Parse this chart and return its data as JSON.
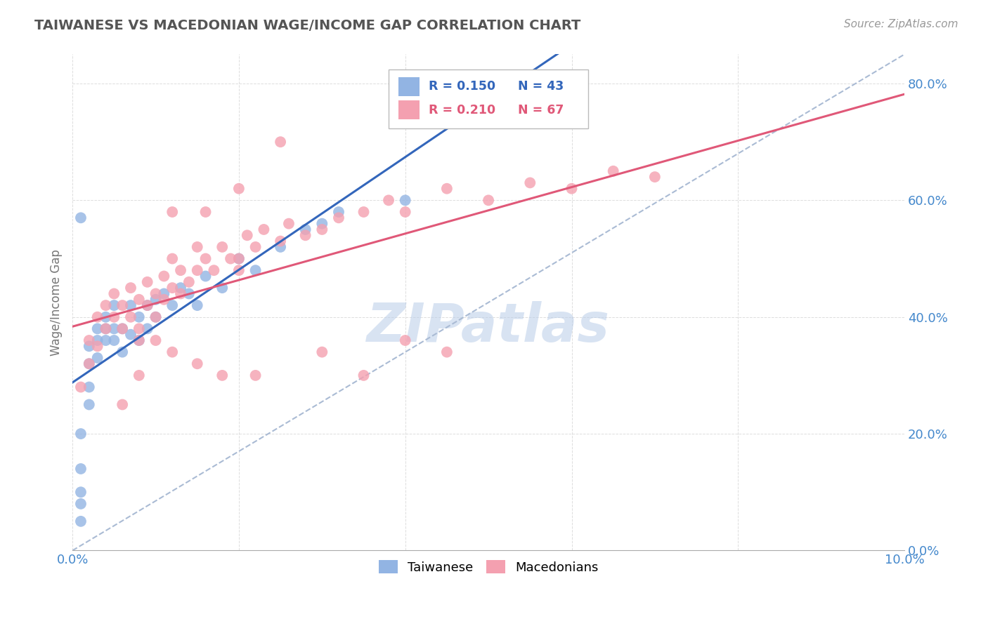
{
  "title": "TAIWANESE VS MACEDONIAN WAGE/INCOME GAP CORRELATION CHART",
  "source": "Source: ZipAtlas.com",
  "ylabel": "Wage/Income Gap",
  "xlim": [
    0.0,
    0.1
  ],
  "ylim": [
    0.0,
    0.85
  ],
  "xtick_vals": [
    0.0,
    0.02,
    0.04,
    0.06,
    0.08,
    0.1
  ],
  "xtick_labels": [
    "0.0%",
    "",
    "",
    "",
    "",
    "10.0%"
  ],
  "ytick_vals": [
    0.0,
    0.2,
    0.4,
    0.6,
    0.8
  ],
  "ytick_labels": [
    "0.0%",
    "20.0%",
    "40.0%",
    "60.0%",
    "80.0%"
  ],
  "legend_r1": "R = 0.150",
  "legend_n1": "N = 43",
  "legend_r2": "R = 0.210",
  "legend_n2": "N = 67",
  "watermark": "ZIPatlas",
  "blue_color": "#92B4E3",
  "pink_color": "#F4A0B0",
  "blue_line_color": "#3366BB",
  "pink_line_color": "#E05878",
  "dash_color": "#AABBD4",
  "tick_color": "#4488CC",
  "title_color": "#555555",
  "ylabel_color": "#777777",
  "grid_color": "#DDDDDD",
  "tw_x": [
    0.001,
    0.001,
    0.001,
    0.001,
    0.001,
    0.002,
    0.002,
    0.002,
    0.002,
    0.003,
    0.003,
    0.003,
    0.004,
    0.004,
    0.004,
    0.005,
    0.005,
    0.005,
    0.006,
    0.006,
    0.007,
    0.007,
    0.008,
    0.008,
    0.009,
    0.009,
    0.01,
    0.01,
    0.011,
    0.012,
    0.013,
    0.014,
    0.015,
    0.016,
    0.018,
    0.02,
    0.022,
    0.025,
    0.028,
    0.03,
    0.032,
    0.04,
    0.001
  ],
  "tw_y": [
    0.05,
    0.08,
    0.1,
    0.14,
    0.2,
    0.25,
    0.28,
    0.32,
    0.35,
    0.33,
    0.36,
    0.38,
    0.36,
    0.38,
    0.4,
    0.36,
    0.38,
    0.42,
    0.34,
    0.38,
    0.37,
    0.42,
    0.36,
    0.4,
    0.38,
    0.42,
    0.4,
    0.43,
    0.44,
    0.42,
    0.45,
    0.44,
    0.42,
    0.47,
    0.45,
    0.5,
    0.48,
    0.52,
    0.55,
    0.56,
    0.58,
    0.6,
    0.57
  ],
  "mk_x": [
    0.001,
    0.002,
    0.002,
    0.003,
    0.003,
    0.004,
    0.004,
    0.005,
    0.005,
    0.006,
    0.006,
    0.007,
    0.007,
    0.008,
    0.008,
    0.009,
    0.009,
    0.01,
    0.01,
    0.011,
    0.011,
    0.012,
    0.012,
    0.013,
    0.013,
    0.014,
    0.015,
    0.015,
    0.016,
    0.017,
    0.018,
    0.019,
    0.02,
    0.021,
    0.022,
    0.023,
    0.025,
    0.026,
    0.028,
    0.03,
    0.032,
    0.035,
    0.038,
    0.04,
    0.045,
    0.05,
    0.055,
    0.06,
    0.065,
    0.07,
    0.008,
    0.012,
    0.015,
    0.018,
    0.022,
    0.025,
    0.03,
    0.035,
    0.04,
    0.045,
    0.02,
    0.016,
    0.012,
    0.01,
    0.008,
    0.006,
    0.02
  ],
  "mk_y": [
    0.28,
    0.32,
    0.36,
    0.35,
    0.4,
    0.38,
    0.42,
    0.4,
    0.44,
    0.38,
    0.42,
    0.4,
    0.45,
    0.38,
    0.43,
    0.42,
    0.46,
    0.4,
    0.44,
    0.43,
    0.47,
    0.45,
    0.5,
    0.44,
    0.48,
    0.46,
    0.48,
    0.52,
    0.5,
    0.48,
    0.52,
    0.5,
    0.5,
    0.54,
    0.52,
    0.55,
    0.53,
    0.56,
    0.54,
    0.55,
    0.57,
    0.58,
    0.6,
    0.58,
    0.62,
    0.6,
    0.63,
    0.62,
    0.65,
    0.64,
    0.36,
    0.34,
    0.32,
    0.3,
    0.3,
    0.7,
    0.34,
    0.3,
    0.36,
    0.34,
    0.62,
    0.58,
    0.58,
    0.36,
    0.3,
    0.25,
    0.48
  ]
}
